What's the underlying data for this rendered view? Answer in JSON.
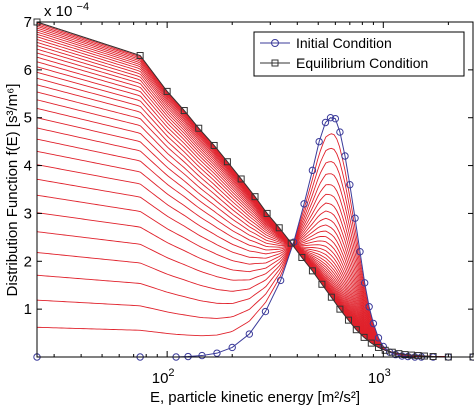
{
  "chart_data": {
    "type": "line",
    "xlabel": "E, particle kinetic energy [m²/s²]",
    "ylabel": "Distribution Function f(E) [s³/m⁶]",
    "xscale": "log",
    "xlim": [
      25,
      2600
    ],
    "ylim": [
      0,
      0.0007
    ],
    "y_multiplier_text": "x 10",
    "y_multiplier_exp": "−4",
    "x_ticks": [
      {
        "value": 100,
        "base": "10",
        "exp": "2"
      },
      {
        "value": 1000,
        "base": "10",
        "exp": "3"
      }
    ],
    "y_ticks": [
      {
        "value": 0.0001,
        "label": "1"
      },
      {
        "value": 0.0002,
        "label": "2"
      },
      {
        "value": 0.0003,
        "label": "3"
      },
      {
        "value": 0.0004,
        "label": "4"
      },
      {
        "value": 0.0005,
        "label": "5"
      },
      {
        "value": 0.0006,
        "label": "6"
      },
      {
        "value": 0.0007,
        "label": "7"
      }
    ],
    "grid": false,
    "legend_position": "top-right",
    "legend": [
      {
        "label": "Initial Condition",
        "marker": "circle",
        "color": "#3b3b9a"
      },
      {
        "label": "Equilibrium Condition",
        "marker": "square",
        "color": "#333333"
      }
    ],
    "initial": {
      "color": "#3b3b9a",
      "x": [
        25,
        75,
        110,
        125,
        145,
        170,
        200,
        240,
        285,
        335,
        385,
        430,
        470,
        505,
        540,
        570,
        600,
        630,
        665,
        700,
        740,
        780,
        820,
        860,
        900,
        950,
        1000,
        1070,
        1140,
        1220,
        1300,
        1400,
        1500,
        1700,
        2000,
        2600
      ],
      "y": [
        0.0,
        0.0,
        0.0,
        1e-06,
        3e-06,
        8e-06,
        2e-05,
        4.8e-05,
        9.5e-05,
        0.00016,
        0.00024,
        0.00032,
        0.00039,
        0.00045,
        0.00049,
        0.0005,
        0.000498,
        0.00047,
        0.00042,
        0.00036,
        0.00029,
        0.00022,
        0.000155,
        0.000105,
        7e-05,
        4e-05,
        2.2e-05,
        1e-05,
        5e-06,
        2e-06,
        1e-06,
        0.0,
        0.0,
        0.0,
        0.0,
        0.0
      ]
    },
    "equilibrium": {
      "color": "#333333",
      "x": [
        25,
        75,
        100,
        120,
        140,
        165,
        190,
        220,
        255,
        290,
        330,
        375,
        420,
        470,
        520,
        575,
        630,
        690,
        750,
        815,
        880,
        950,
        1020,
        1100,
        1180,
        1260,
        1350,
        1450,
        1550,
        1700,
        2000,
        2600
      ],
      "y": [
        0.0007,
        0.00063,
        0.000555,
        0.000515,
        0.000478,
        0.000442,
        0.000408,
        0.000372,
        0.000335,
        0.0003,
        0.00027,
        0.000238,
        0.000208,
        0.00018,
        0.000152,
        0.000125,
        0.0001,
        7.7e-05,
        5.7e-05,
        4.1e-05,
        2.9e-05,
        2e-05,
        1.4e-05,
        1e-05,
        7e-06,
        5e-06,
        4e-06,
        3e-06,
        2e-06,
        1e-06,
        0.0,
        0.0
      ]
    },
    "evolution": {
      "count": 36,
      "color": "#e0212b"
    }
  }
}
